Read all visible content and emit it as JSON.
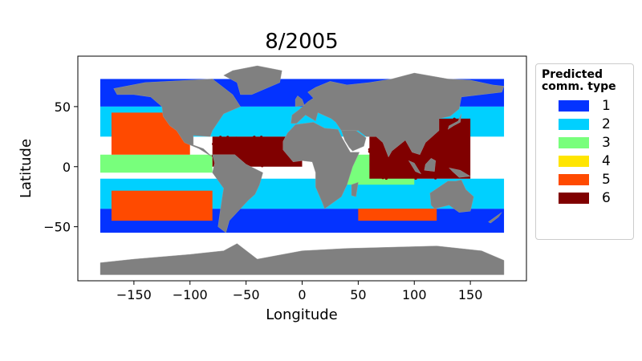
{
  "chart_data": {
    "type": "map-scatter",
    "title": "8/2005",
    "xlabel": "Longitude",
    "ylabel": "Latitude",
    "xlim": [
      -200,
      200
    ],
    "ylim": [
      -95,
      92
    ],
    "xticks": [
      -150,
      -100,
      -50,
      0,
      50,
      100,
      150
    ],
    "xtick_labels": [
      "−150",
      "−100",
      "−50",
      "0",
      "50",
      "100",
      "150"
    ],
    "yticks": [
      -50,
      0,
      50
    ],
    "ytick_labels": [
      "−50",
      "0",
      "50"
    ],
    "grid": false,
    "legend": {
      "title_line1": "Predicted",
      "title_line2": "comm. type",
      "placement": "right-outside",
      "entries": [
        {
          "label": "1",
          "color": "#0433ff"
        },
        {
          "label": "2",
          "color": "#00d0ff"
        },
        {
          "label": "3",
          "color": "#78ff7c"
        },
        {
          "label": "4",
          "color": "#ffe500"
        },
        {
          "label": "5",
          "color": "#ff4a00"
        },
        {
          "label": "6",
          "color": "#800000"
        }
      ]
    },
    "land_color": "#808080",
    "regions": [
      {
        "type": 1,
        "lon": [
          -180,
          180
        ],
        "lat": [
          50,
          73
        ]
      },
      {
        "type": 1,
        "lon": [
          -180,
          180
        ],
        "lat": [
          -55,
          -35
        ]
      },
      {
        "type": 2,
        "lon": [
          -180,
          180
        ],
        "lat": [
          25,
          50
        ]
      },
      {
        "type": 2,
        "lon": [
          -180,
          180
        ],
        "lat": [
          -35,
          -10
        ]
      },
      {
        "type": 3,
        "lon": [
          -180,
          -80
        ],
        "lat": [
          -5,
          10
        ]
      },
      {
        "type": 3,
        "lon": [
          40,
          100
        ],
        "lat": [
          -15,
          10
        ]
      },
      {
        "type": 5,
        "lon": [
          -170,
          -100
        ],
        "lat": [
          10,
          45
        ]
      },
      {
        "type": 5,
        "lon": [
          -170,
          -80
        ],
        "lat": [
          -45,
          -20
        ]
      },
      {
        "type": 5,
        "lon": [
          50,
          120
        ],
        "lat": [
          -45,
          -35
        ]
      },
      {
        "type": 6,
        "lon": [
          -80,
          0
        ],
        "lat": [
          0,
          25
        ]
      },
      {
        "type": 6,
        "lon": [
          60,
          150
        ],
        "lat": [
          -10,
          40
        ]
      }
    ]
  }
}
